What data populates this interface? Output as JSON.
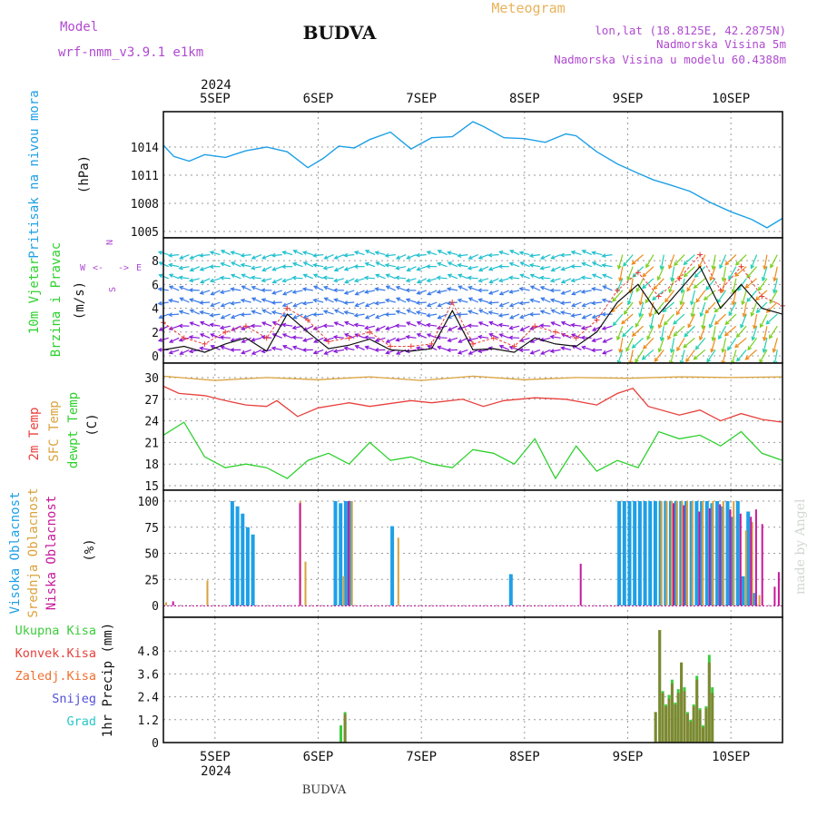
{
  "header": {
    "model_label": "Model",
    "model_name": "wrf-nmm_v3.9.1 e1km",
    "title": "BUDVA",
    "meteogram_label": "Meteogram",
    "lonlat": "lon,lat (18.8125E, 42.2875N)",
    "altitude": "Nadmorska Visina 5m",
    "model_altitude": "Nadmorska Visina u modelu 60.4388m",
    "year_top": "2024",
    "year_bottom": "2024",
    "footer": "BUDVA",
    "credit": "made by Angel"
  },
  "colors": {
    "pressure": "#1ea0e6",
    "t2m": "#e8403c",
    "sfc": "#d9a23c",
    "dew": "#2ed12e",
    "cloud_high": "#1ea0e6",
    "cloud_mid": "#d9a23c",
    "cloud_low": "#c8189a",
    "precip_total": "#3ccc3c",
    "precip_conv": "#e8403c",
    "precip_frozen": "#f07030",
    "snow": "#5050d8",
    "hail": "#28c8c8",
    "wind_speed": "#111111",
    "gust": "#e8403c",
    "arrow_low": "#8a18d8",
    "arrow_high": "#ee8a18",
    "compass": "#b04ad0"
  },
  "chart_data": [
    {
      "type": "line",
      "name": "pressure",
      "ylabel": [
        "Pritisak na nivou mora",
        "(hPa)"
      ],
      "x_unit": "days after 2024-09-04 12:00 UTC",
      "ylim": [
        1005,
        1017
      ],
      "yticks": [
        "1005",
        "1008",
        "1011",
        "1014"
      ],
      "x": [
        0,
        0.1,
        0.25,
        0.4,
        0.6,
        0.8,
        1.0,
        1.2,
        1.4,
        1.55,
        1.7,
        1.85,
        2.0,
        2.2,
        2.4,
        2.6,
        2.8,
        3.0,
        3.1,
        3.3,
        3.5,
        3.7,
        3.9,
        4.0,
        4.2,
        4.4,
        4.6,
        4.75,
        4.9,
        5.1,
        5.3,
        5.5,
        5.7,
        5.85,
        6.0
      ],
      "values": [
        1014.2,
        1013.0,
        1012.5,
        1013.2,
        1012.9,
        1013.6,
        1014.0,
        1013.5,
        1011.8,
        1012.8,
        1014.1,
        1013.9,
        1014.8,
        1015.6,
        1013.8,
        1015.0,
        1015.1,
        1016.7,
        1016.2,
        1015.0,
        1014.9,
        1014.5,
        1015.4,
        1015.2,
        1013.5,
        1012.2,
        1011.2,
        1010.5,
        1010.0,
        1009.3,
        1008.1,
        1007.1,
        1006.3,
        1005.4,
        1006.4
      ]
    },
    {
      "type": "line",
      "name": "wind",
      "ylabel": [
        "10m Vjetar",
        "Brzina i Pravac",
        "(m/s)"
      ],
      "ylim": [
        0,
        9
      ],
      "yticks": [
        "0",
        "2",
        "4",
        "6",
        "8"
      ],
      "compass": [
        "N",
        "E",
        "S",
        "W",
        "<-",
        "->"
      ],
      "x": [
        0,
        0.2,
        0.4,
        0.6,
        0.8,
        1.0,
        1.2,
        1.4,
        1.6,
        1.8,
        2.0,
        2.2,
        2.4,
        2.6,
        2.8,
        3.0,
        3.2,
        3.4,
        3.6,
        3.8,
        4.0,
        4.2,
        4.4,
        4.6,
        4.8,
        5.0,
        5.2,
        5.4,
        5.6,
        5.8,
        6.0
      ],
      "speed": [
        0.5,
        0.8,
        0.3,
        1.0,
        1.5,
        0.4,
        3.5,
        2.0,
        0.6,
        0.9,
        1.4,
        0.5,
        0.4,
        0.6,
        3.8,
        0.5,
        0.6,
        0.3,
        1.5,
        1.0,
        0.8,
        2.0,
        4.5,
        6.0,
        3.5,
        5.5,
        7.5,
        4.0,
        6.0,
        4.0,
        3.5
      ],
      "gust": [
        2.8,
        1.5,
        1.0,
        2.0,
        2.5,
        1.5,
        4.0,
        3.0,
        1.2,
        1.5,
        2.0,
        0.8,
        0.8,
        1.0,
        4.5,
        1.0,
        1.5,
        0.8,
        2.5,
        2.0,
        1.5,
        3.0,
        5.5,
        7.0,
        5.0,
        6.5,
        8.5,
        5.5,
        7.5,
        5.0,
        4.2
      ]
    },
    {
      "type": "line",
      "name": "temperature",
      "ylabel": [
        "2m Temp",
        "SFC Temp",
        "dewpt Temp",
        "(C)"
      ],
      "ylim": [
        15,
        31
      ],
      "yticks": [
        "15",
        "18",
        "21",
        "24",
        "27",
        "30"
      ],
      "series": [
        {
          "name": "SFC Temp",
          "color_key": "sfc",
          "x": [
            0,
            0.5,
            1.0,
            1.5,
            2.0,
            2.5,
            3.0,
            3.5,
            4.0,
            4.5,
            5.0,
            5.5,
            6.0
          ],
          "values": [
            30.2,
            29.6,
            30.0,
            29.7,
            30.1,
            29.6,
            30.2,
            29.7,
            30.0,
            29.9,
            30.1,
            30.0,
            30.1
          ]
        },
        {
          "name": "2m Temp",
          "color_key": "t2m",
          "x": [
            0,
            0.15,
            0.4,
            0.6,
            0.8,
            1.0,
            1.1,
            1.3,
            1.5,
            1.8,
            2.0,
            2.4,
            2.6,
            2.9,
            3.1,
            3.3,
            3.6,
            3.9,
            4.2,
            4.4,
            4.55,
            4.7,
            5.0,
            5.2,
            5.4,
            5.6,
            5.8,
            6.0
          ],
          "values": [
            28.8,
            27.8,
            27.5,
            26.8,
            26.2,
            26.0,
            26.8,
            24.6,
            25.8,
            26.5,
            26.0,
            26.8,
            26.5,
            27.0,
            26.0,
            26.8,
            27.2,
            27.0,
            26.2,
            27.8,
            28.5,
            26.0,
            24.8,
            25.5,
            24.0,
            25.0,
            24.2,
            23.8
          ]
        },
        {
          "name": "dewpt Temp",
          "color_key": "dew",
          "x": [
            0,
            0.2,
            0.4,
            0.6,
            0.8,
            1.0,
            1.2,
            1.4,
            1.6,
            1.8,
            2.0,
            2.2,
            2.4,
            2.6,
            2.8,
            3.0,
            3.2,
            3.4,
            3.6,
            3.8,
            4.0,
            4.2,
            4.4,
            4.6,
            4.8,
            5.0,
            5.2,
            5.4,
            5.6,
            5.8,
            6.0
          ],
          "values": [
            22.0,
            23.8,
            19.0,
            17.5,
            18.0,
            17.5,
            16.0,
            18.5,
            19.5,
            18.0,
            21.0,
            18.5,
            19.0,
            18.0,
            17.5,
            20.0,
            19.5,
            18.0,
            21.5,
            16.0,
            20.5,
            17.0,
            18.5,
            17.5,
            22.5,
            21.5,
            22.0,
            20.5,
            22.5,
            19.5,
            18.5
          ]
        }
      ]
    },
    {
      "type": "bar",
      "name": "clouds",
      "ylabel": [
        "Visoka Oblacnost",
        "Srednja Oblacnost",
        "Niska Oblacnost",
        "(%)"
      ],
      "ylim": [
        0,
        100
      ],
      "yticks": [
        "0",
        "25",
        "50",
        "75",
        "100"
      ],
      "series": [
        {
          "name": "Visoka Oblacnost",
          "color_key": "cloud_high",
          "x": [
            0.65,
            0.7,
            0.75,
            0.8,
            0.85,
            1.65,
            1.7,
            1.75,
            1.8,
            2.2,
            3.35,
            4.4,
            4.45,
            4.5,
            4.55,
            4.6,
            4.65,
            4.7,
            4.75,
            4.8,
            4.85,
            4.9,
            4.95,
            5.0,
            5.05,
            5.1,
            5.15,
            5.2,
            5.25,
            5.3,
            5.35,
            5.4,
            5.45,
            5.5,
            5.55,
            5.6,
            5.65,
            5.7
          ],
          "values": [
            100,
            95,
            88,
            75,
            68,
            100,
            98,
            100,
            100,
            76,
            30,
            100,
            100,
            100,
            100,
            100,
            100,
            100,
            100,
            100,
            100,
            100,
            100,
            100,
            100,
            100,
            100,
            100,
            100,
            98,
            100,
            95,
            100,
            85,
            100,
            28,
            90,
            12
          ]
        },
        {
          "name": "Srednja Oblacnost",
          "color_key": "cloud_mid",
          "x": [
            0.0,
            0.4,
            1.3,
            1.35,
            1.72,
            1.8,
            2.25,
            4.8,
            4.85,
            4.9,
            4.95,
            5.0,
            5.05,
            5.1,
            5.2,
            5.3,
            5.4,
            5.5,
            5.62,
            5.68,
            5.75
          ],
          "values": [
            3,
            24,
            100,
            42,
            28,
            100,
            65,
            100,
            100,
            100,
            100,
            100,
            100,
            100,
            100,
            100,
            100,
            100,
            72,
            80,
            10
          ]
        },
        {
          "name": "Niska Oblacnost",
          "color_key": "cloud_low",
          "x": [
            0.05,
            1.28,
            1.75,
            4.0,
            4.9,
            5.0,
            5.15,
            5.25,
            5.35,
            5.45,
            5.55,
            5.65,
            5.7,
            5.76,
            5.88,
            5.92
          ],
          "values": [
            4,
            98,
            100,
            40,
            98,
            96,
            90,
            93,
            97,
            92,
            88,
            85,
            92,
            78,
            18,
            32
          ]
        }
      ]
    },
    {
      "type": "bar",
      "name": "precipitation",
      "ylabel": [
        "1hr Precip (mm)"
      ],
      "legend": [
        "Ukupna Kisa",
        "Konvek.Kisa",
        "Zaledj.Kisa",
        "Snijeg",
        "Grad"
      ],
      "ylim": [
        0,
        6.0
      ],
      "yticks": [
        "0",
        "1.2",
        "2.4",
        "3.6",
        "4.8"
      ],
      "x": [
        1.72,
        1.76,
        4.77,
        4.81,
        4.84,
        4.87,
        4.9,
        4.93,
        4.96,
        4.99,
        5.02,
        5.05,
        5.08,
        5.11,
        5.14,
        5.17,
        5.2,
        5.23,
        5.26,
        5.29,
        5.32,
        5.35,
        5.38,
        5.41
      ],
      "total": [
        0.9,
        1.6,
        1.6,
        5.9,
        2.7,
        2.0,
        2.5,
        3.3,
        2.1,
        2.8,
        4.2,
        2.9,
        1.6,
        1.2,
        2.0,
        3.5,
        1.8,
        0.9,
        1.9,
        4.6,
        2.9,
        0,
        0,
        0
      ],
      "convective": [
        0,
        1.5,
        1.6,
        5.9,
        2.6,
        1.9,
        2.3,
        3.1,
        2.0,
        2.6,
        4.2,
        2.7,
        1.5,
        1.1,
        1.9,
        3.3,
        1.7,
        0.8,
        1.8,
        4.2,
        2.6,
        0,
        0,
        0
      ]
    }
  ],
  "x_axis": {
    "labels": [
      "5SEP",
      "6SEP",
      "7SEP",
      "8SEP",
      "9SEP",
      "10SEP"
    ],
    "positions_days": [
      0.5,
      1.5,
      2.5,
      3.5,
      4.5,
      5.5
    ]
  }
}
